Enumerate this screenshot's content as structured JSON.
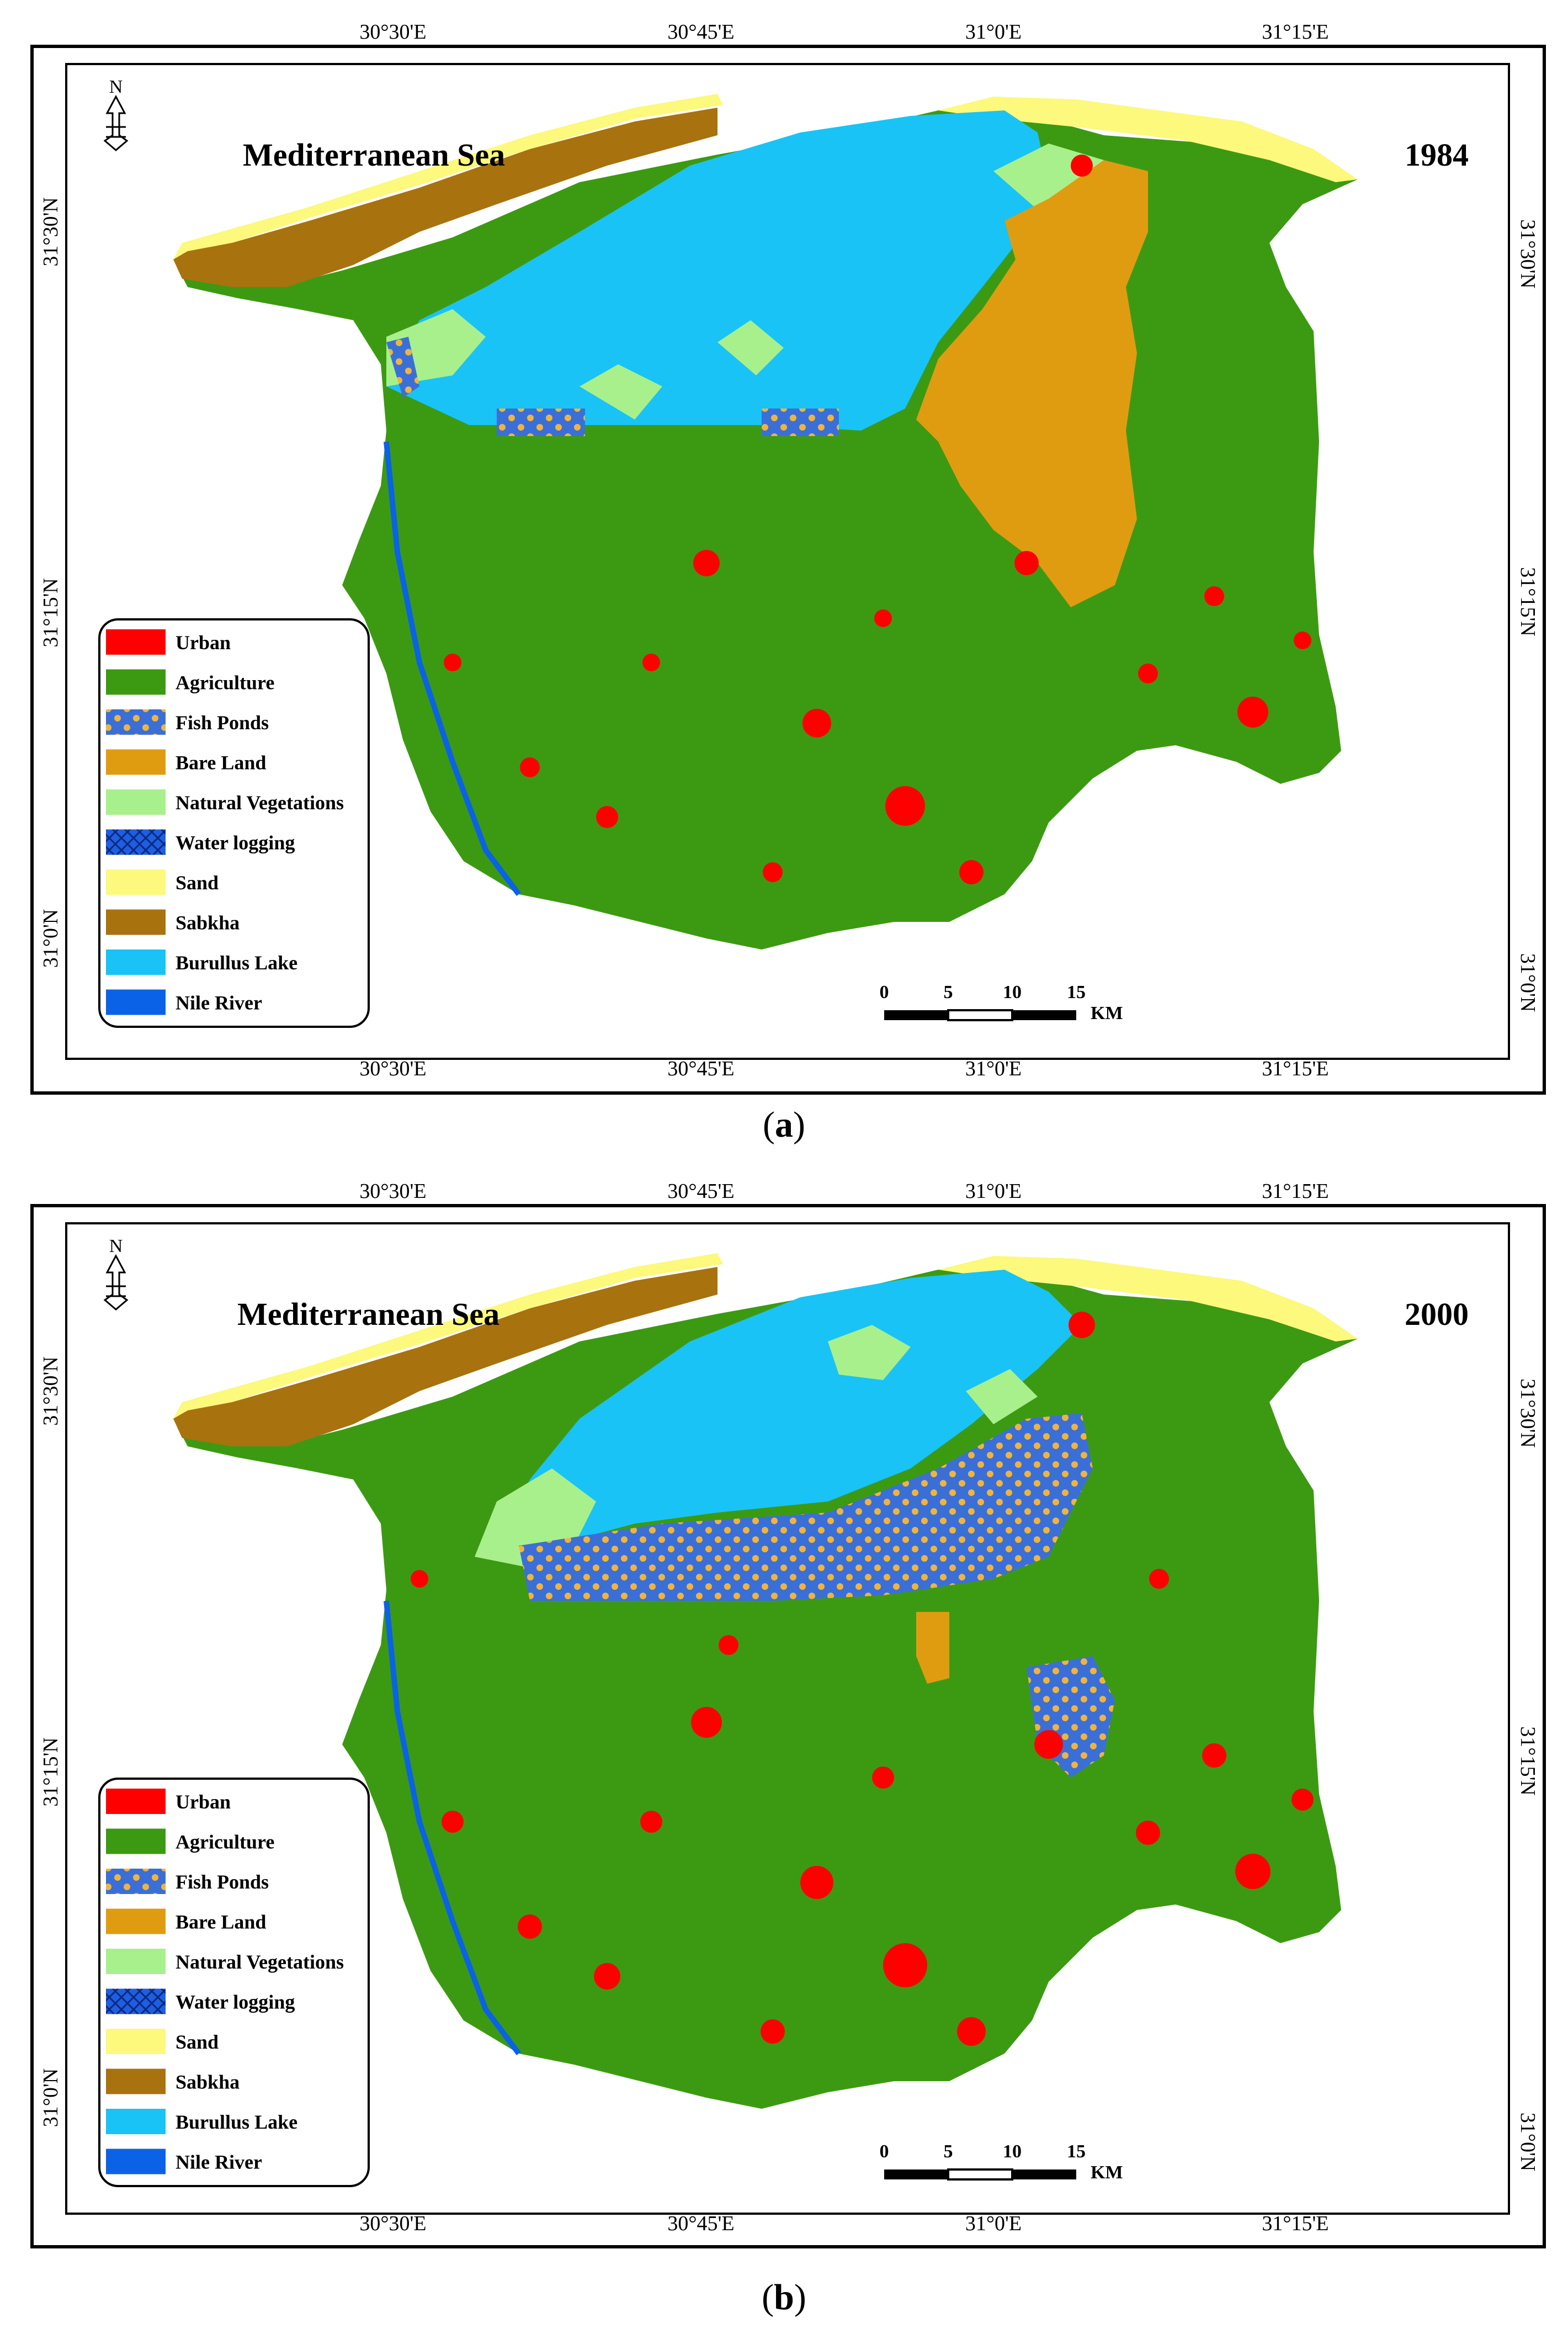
{
  "panels": [
    {
      "id": "a",
      "title": "Mediterranean Sea",
      "year": "1984",
      "caption_open": "(",
      "caption_letter": "a",
      "caption_close": ")"
    },
    {
      "id": "b",
      "title": "Mediterranean Sea",
      "year": "2000",
      "caption_open": "(",
      "caption_letter": "b",
      "caption_close": ")"
    }
  ],
  "axes": {
    "top_labels": [
      "30°30'E",
      "30°45'E",
      "31°0'E",
      "31°15'E"
    ],
    "bottom_labels": [
      "30°30'E",
      "30°45'E",
      "31°0'E",
      "31°15'E"
    ],
    "left_labels": [
      "31°30'N",
      "31°15'N",
      "31°0'N"
    ],
    "right_labels": [
      "31°30'N",
      "31°15'N",
      "31°0'N"
    ]
  },
  "north_arrow_label": "N",
  "legend": [
    {
      "label": "Urban",
      "color": "#ff0000",
      "pattern": "solid"
    },
    {
      "label": "Agriculture",
      "color": "#3c9a12",
      "pattern": "solid"
    },
    {
      "label": "Fish Ponds",
      "color": "#3b6fd8",
      "pattern": "fish"
    },
    {
      "label": "Bare Land",
      "color": "#e09c10",
      "pattern": "solid"
    },
    {
      "label": "Natural Vegetations",
      "color": "#a8f08c",
      "pattern": "solid"
    },
    {
      "label": "Water logging",
      "color": "#1f5ee0",
      "pattern": "cross"
    },
    {
      "label": "Sand",
      "color": "#fcf97c",
      "pattern": "solid"
    },
    {
      "label": "Sabkha",
      "color": "#a8720e",
      "pattern": "solid"
    },
    {
      "label": " Burullus Lake",
      "color": "#19c3f5",
      "pattern": "solid"
    },
    {
      "label": "Nile River",
      "color": "#0a62e6",
      "pattern": "solid"
    }
  ],
  "scale_bar": {
    "ticks": [
      "0",
      "5",
      "10",
      "15"
    ],
    "unit": "KM"
  }
}
